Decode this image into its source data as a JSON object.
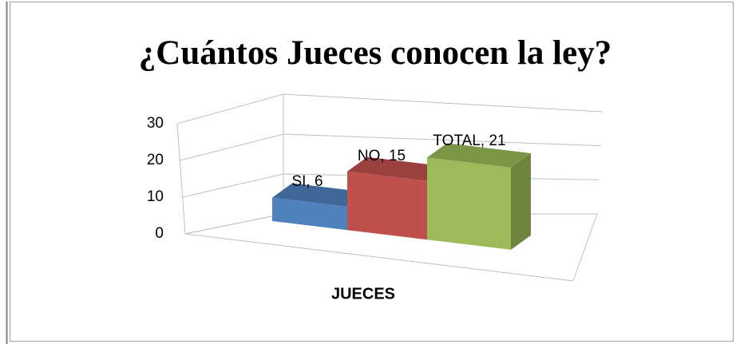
{
  "chart_data": {
    "type": "bar3d",
    "title": "¿Cuántos Jueces conocen la ley?",
    "categories": [
      "JUECES"
    ],
    "series": [
      {
        "name": "SI",
        "color": "#4f81bd",
        "values": [
          6
        ],
        "value_labels": [
          "SI, 6"
        ]
      },
      {
        "name": "NO",
        "color": "#c0504d",
        "values": [
          15
        ],
        "value_labels": [
          "NO, 15"
        ]
      },
      {
        "name": "TOTAL",
        "color": "#9bbb59",
        "values": [
          21
        ],
        "value_labels": [
          "TOTAL, 21"
        ]
      }
    ],
    "ylim": [
      0,
      30
    ],
    "yticks": [
      0,
      10,
      20,
      30
    ],
    "grid": true
  }
}
